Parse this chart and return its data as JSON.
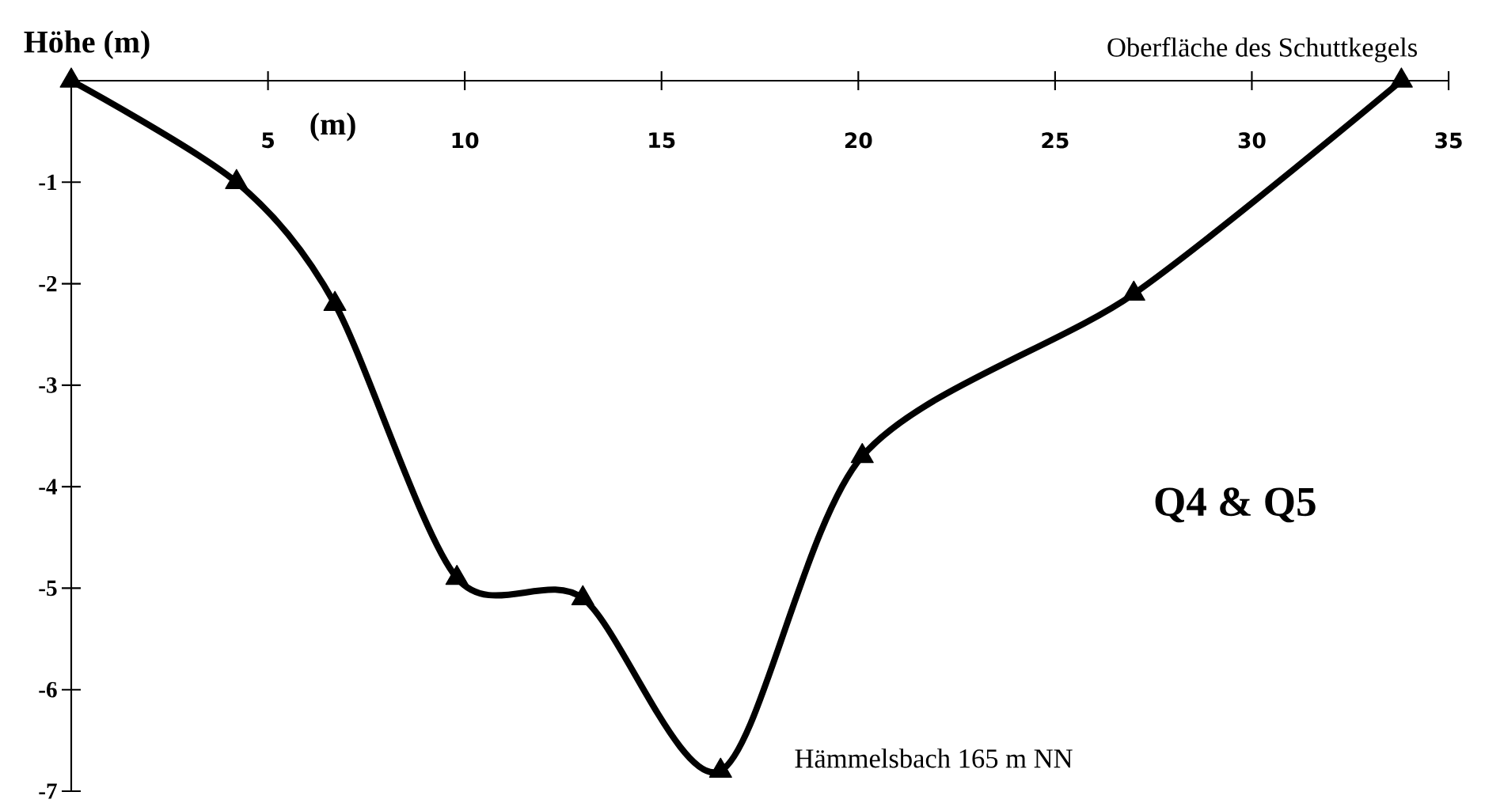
{
  "chart_data": {
    "type": "line",
    "title": "Q4 & Q5",
    "xlabel": "(m)",
    "ylabel": "Höhe (m)",
    "x": [
      0,
      4.2,
      6.7,
      9.8,
      13.0,
      16.5,
      20.1,
      27.0,
      33.8
    ],
    "series": [
      {
        "color": "#000000",
        "values": [
          0,
          -1,
          -2.2,
          -4.9,
          -5.1,
          -6.8,
          -3.7,
          -2.1,
          0
        ]
      }
    ],
    "xlim": [
      0,
      35
    ],
    "xticks": [
      5,
      10,
      15,
      20,
      25,
      30,
      35
    ],
    "ylim": [
      -7,
      0
    ],
    "yticks": [
      -1,
      -2,
      -3,
      -4,
      -5,
      -6,
      -7
    ],
    "annotations": [
      {
        "text": "Oberfläche des Schuttkegels",
        "x": 33.8,
        "y": 0
      },
      {
        "text": "Hämmelsbach 165 m NN",
        "x": 16.5,
        "y": -6.8
      }
    ],
    "marker": "triangle",
    "line_style": "solid"
  }
}
